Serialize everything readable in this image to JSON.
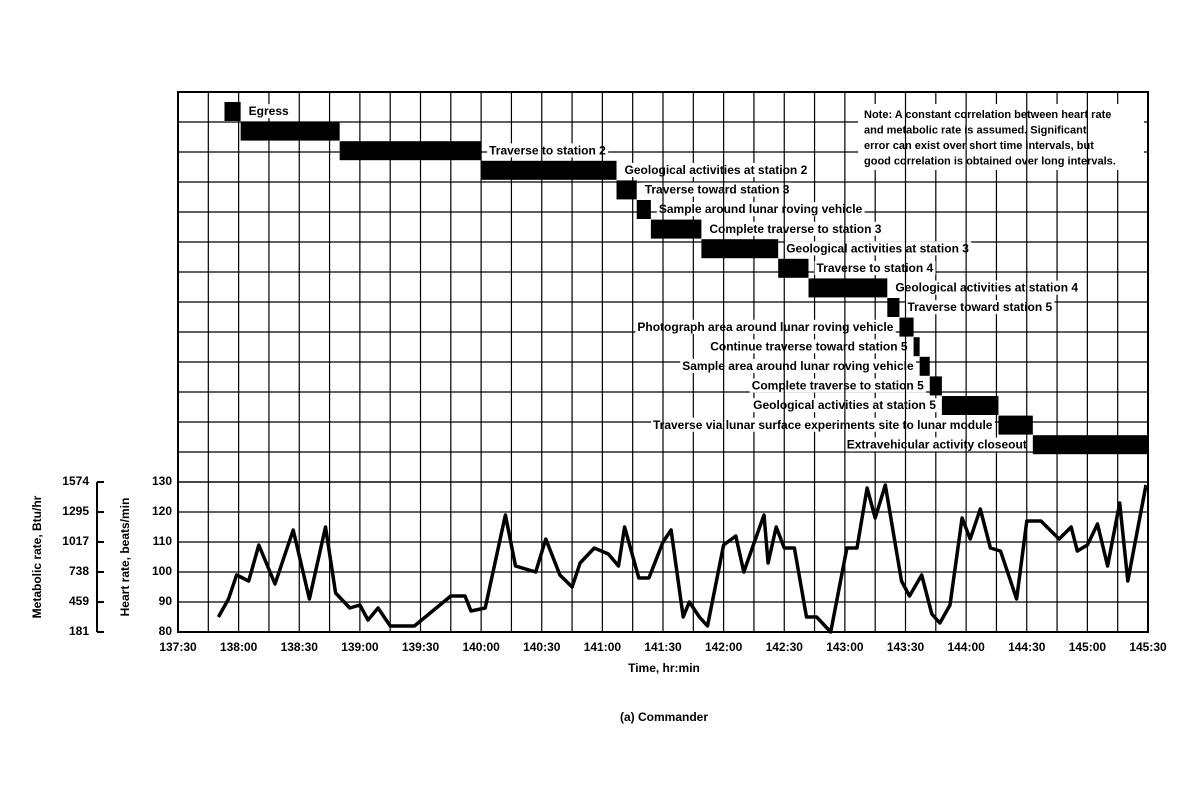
{
  "chart_data": [
    {
      "type": "gantt",
      "xlim": [
        8250,
        8730
      ],
      "activities": [
        {
          "name": "Egress",
          "start": 8273,
          "end": 8281
        },
        {
          "name": null,
          "start": 8281,
          "end": 8330
        },
        {
          "name": "Traverse to station 2",
          "start": 8330,
          "end": 8400
        },
        {
          "name": "Geological activities at station 2",
          "start": 8400,
          "end": 8467
        },
        {
          "name": "Traverse toward station 3",
          "start": 8467,
          "end": 8477
        },
        {
          "name": "Sample around lunar roving vehicle",
          "start": 8477,
          "end": 8484
        },
        {
          "name": "Complete traverse to station 3",
          "start": 8484,
          "end": 8509
        },
        {
          "name": "Geological activities at station 3",
          "start": 8509,
          "end": 8547
        },
        {
          "name": "Traverse to station 4",
          "start": 8547,
          "end": 8562
        },
        {
          "name": "Geological activities at station 4",
          "start": 8562,
          "end": 8601
        },
        {
          "name": "Traverse toward station 5",
          "start": 8601,
          "end": 8607
        },
        {
          "name": "Photograph area around lunar roving vehicle",
          "start": 8607,
          "end": 8614
        },
        {
          "name": "Continue traverse toward station 5",
          "start": 8614,
          "end": 8617
        },
        {
          "name": "Sample area around lunar roving vehicle",
          "start": 8617,
          "end": 8622
        },
        {
          "name": "Complete traverse to station 5",
          "start": 8622,
          "end": 8628
        },
        {
          "name": "Geological activities at station 5",
          "start": 8628,
          "end": 8656
        },
        {
          "name": "Traverse via lunar surface experiments site to lunar module",
          "start": 8656,
          "end": 8673
        },
        {
          "name": "Extravehicular activity closeout",
          "start": 8673,
          "end": 8730
        }
      ],
      "note": [
        "Note: A constant correlation between heart rate",
        "and metabolic rate is assumed.  Significant",
        "error can exist over short time intervals, but",
        "good correlation is obtained over long intervals."
      ]
    },
    {
      "type": "line",
      "caption": "(a) Commander",
      "xlabel": "Time, hr:min",
      "ylabel": "Heart rate, beats/min",
      "y2label": "Metabolic rate, Btu/hr",
      "color": "#000000",
      "grid": true,
      "xlim": [
        8250,
        8730
      ],
      "xticks": [
        {
          "value": 8250,
          "label": "137:30"
        },
        {
          "value": 8280,
          "label": "138:00"
        },
        {
          "value": 8310,
          "label": "138:30"
        },
        {
          "value": 8340,
          "label": "139:00"
        },
        {
          "value": 8370,
          "label": "139:30"
        },
        {
          "value": 8400,
          "label": "140:00"
        },
        {
          "value": 8430,
          "label": "140:30"
        },
        {
          "value": 8460,
          "label": "141:00"
        },
        {
          "value": 8490,
          "label": "141:30"
        },
        {
          "value": 8520,
          "label": "142:00"
        },
        {
          "value": 8550,
          "label": "142:30"
        },
        {
          "value": 8580,
          "label": "143:00"
        },
        {
          "value": 8610,
          "label": "143:30"
        },
        {
          "value": 8640,
          "label": "144:00"
        },
        {
          "value": 8670,
          "label": "144:30"
        },
        {
          "value": 8700,
          "label": "145:00"
        },
        {
          "value": 8730,
          "label": "145:30"
        }
      ],
      "ylim": [
        80,
        130
      ],
      "yticks": [
        80,
        90,
        100,
        110,
        120,
        130
      ],
      "y2lim": [
        181,
        1574
      ],
      "y2ticks": [
        181,
        459,
        738,
        1017,
        1295,
        1574
      ],
      "x": [
        8270,
        8275,
        8279,
        8285,
        8290,
        8298,
        8307,
        8315,
        8323,
        8328,
        8335,
        8340,
        8344,
        8349,
        8355,
        8367,
        8385,
        8392,
        8395,
        8402,
        8412,
        8417,
        8427,
        8432,
        8439,
        8445,
        8449,
        8456,
        8463,
        8468,
        8471,
        8478,
        8483,
        8490,
        8494,
        8500,
        8503,
        8508,
        8512,
        8520,
        8526,
        8530,
        8540,
        8542,
        8546,
        8550,
        8555,
        8561,
        8566,
        8573,
        8581,
        8586,
        8591,
        8595,
        8600,
        8608,
        8612,
        8618,
        8623,
        8627,
        8632,
        8638,
        8642,
        8647,
        8652,
        8657,
        8665,
        8670,
        8677,
        8686,
        8692,
        8695,
        8700,
        8705,
        8710,
        8716,
        8720,
        8729
      ],
      "values": [
        85,
        91,
        99,
        97,
        109,
        96,
        114,
        91,
        115,
        93,
        88,
        89,
        84,
        88,
        82,
        82,
        92,
        92,
        87,
        88,
        119,
        102,
        100,
        111,
        99,
        95,
        103,
        108,
        106,
        102,
        115,
        98,
        98,
        110,
        114,
        85,
        90,
        85,
        82,
        109,
        112,
        100,
        119,
        103,
        115,
        108,
        108,
        85,
        85,
        80,
        108,
        108,
        128,
        118,
        129,
        97,
        92,
        99,
        86,
        83,
        89,
        118,
        111,
        121,
        108,
        107,
        91,
        117,
        117,
        111,
        115,
        107,
        109,
        116,
        102,
        123,
        97,
        129
      ]
    }
  ]
}
